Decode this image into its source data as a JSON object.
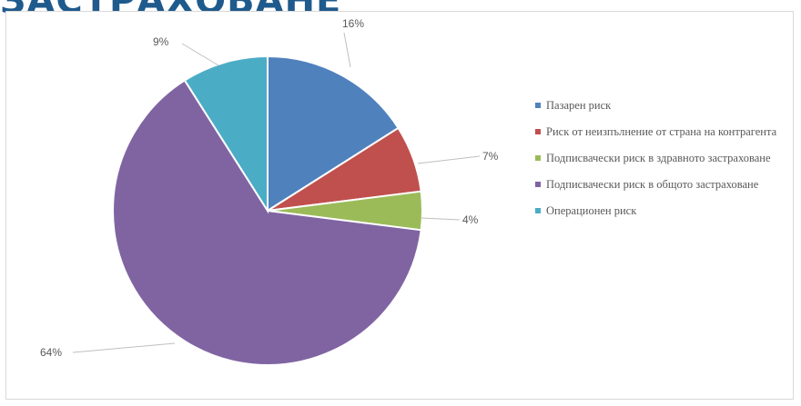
{
  "header": {
    "title_fragment": "ЗАСТРАХОВАНЕ"
  },
  "chart_data": {
    "type": "pie",
    "title": "",
    "categories": [
      "Пазарен риск",
      "Риск от неизпълнение от страна на контрагента",
      "Подписвачески риск в здравното застраховане",
      "Подписвачески риск в общото застраховане",
      "Операционен риск"
    ],
    "values": [
      16,
      7,
      4,
      64,
      9
    ],
    "data_labels": [
      "16%",
      "7%",
      "4%",
      "64%",
      "9%"
    ],
    "colors": [
      "#4f81bd",
      "#c0504d",
      "#9bbb59",
      "#8064a2",
      "#4bacc6"
    ],
    "legend": "right"
  }
}
